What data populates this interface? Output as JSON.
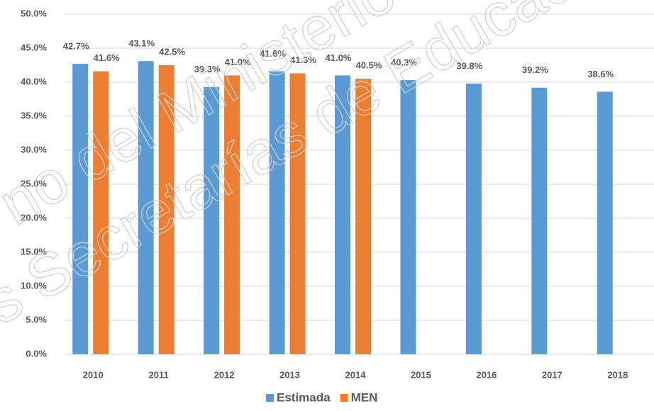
{
  "chart_data": {
    "type": "bar",
    "categories": [
      "2010",
      "2011",
      "2012",
      "2013",
      "2014",
      "2015",
      "2016",
      "2017",
      "2018"
    ],
    "series": [
      {
        "name": "Estimada",
        "color": "#5b9bd5",
        "values": [
          42.7,
          43.1,
          39.3,
          41.6,
          41.0,
          40.3,
          39.8,
          39.2,
          38.6
        ],
        "value_labels": [
          "42.7%",
          "43.1%",
          "39.3%",
          "41.6%",
          "41.0%",
          "40.3%",
          "39.8%",
          "39.2%",
          "38.6%"
        ]
      },
      {
        "name": "MEN",
        "color": "#ed7d31",
        "values": [
          41.6,
          42.5,
          41.0,
          41.3,
          40.5,
          null,
          null,
          null,
          null
        ],
        "value_labels": [
          "41.6%",
          "42.5%",
          "41.0%",
          "41.3%",
          "40.5%",
          null,
          null,
          null,
          null
        ]
      }
    ],
    "ylim": [
      0,
      50
    ],
    "yticks": [
      {
        "value": 0,
        "label": "0.0%"
      },
      {
        "value": 5,
        "label": "5.0%"
      },
      {
        "value": 10,
        "label": "10.0%"
      },
      {
        "value": 15,
        "label": "15.0%"
      },
      {
        "value": 20,
        "label": "20.0%"
      },
      {
        "value": 25,
        "label": "25.0%"
      },
      {
        "value": 30,
        "label": "30.0%"
      },
      {
        "value": 35,
        "label": "35.0%"
      },
      {
        "value": 40,
        "label": "40.0%"
      },
      {
        "value": 45,
        "label": "45.0%"
      },
      {
        "value": 50,
        "label": "50.0%"
      }
    ],
    "grid": true,
    "legend": "bottom",
    "watermark": [
      "no del Ministerio",
      "s Secretarías de Educac"
    ]
  }
}
